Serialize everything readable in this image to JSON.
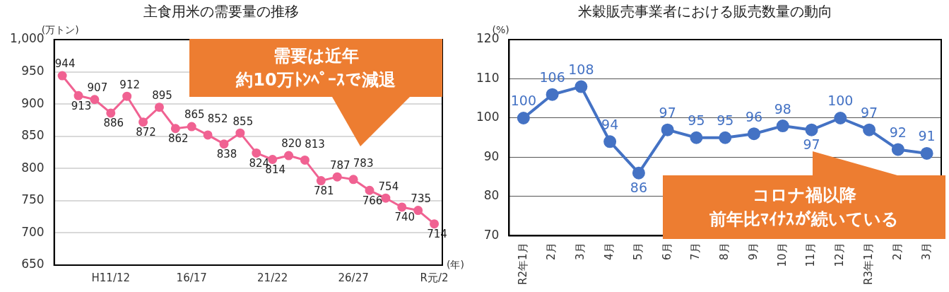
{
  "chart_data": [
    {
      "type": "line",
      "title": "主食用米の需要量の推移",
      "ylabel": "(万トン)",
      "xlabel": "(年)",
      "categories": [
        null,
        null,
        null,
        "H11/12",
        null,
        null,
        null,
        null,
        "16/17",
        null,
        null,
        null,
        null,
        "21/22",
        null,
        null,
        null,
        null,
        "26/27",
        null,
        null,
        null,
        null,
        "R元/2"
      ],
      "series": [
        {
          "color": "#f06292",
          "values": [
            944,
            913,
            907,
            886,
            912,
            872,
            895,
            862,
            865,
            852,
            838,
            855,
            824,
            814,
            820,
            813,
            781,
            787,
            783,
            766,
            754,
            740,
            735,
            714
          ]
        }
      ],
      "ylim": [
        650,
        1000
      ],
      "yticks": [
        650,
        700,
        750,
        800,
        850,
        900,
        950,
        {
          "value": 1000,
          "label": "1,000"
        }
      ],
      "grid": "y",
      "marker": "circle",
      "data_labels": true,
      "annotations": [
        "需要は近年",
        "約10万ﾄﾝﾍﾟｰｽで減退"
      ]
    },
    {
      "type": "line",
      "title": "米穀販売事業者における販売数量の動向",
      "ylabel": "(%)",
      "categories": [
        "R2年1月",
        "2月",
        "3月",
        "4月",
        "5月",
        "6月",
        "7月",
        "8月",
        "9月",
        "10月",
        "11月",
        "12月",
        "R3年1月",
        "2月",
        "3月"
      ],
      "series": [
        {
          "color": "#4472c4",
          "values": [
            100,
            106,
            108,
            94,
            86,
            97,
            95,
            95,
            96,
            98,
            97,
            100,
            97,
            92,
            91
          ]
        }
      ],
      "ylim": [
        70,
        120
      ],
      "yticks": [
        70,
        80,
        90,
        100,
        110,
        120
      ],
      "grid": "y",
      "marker": "circle",
      "data_labels": true,
      "annotations": [
        "コロナ禍以降",
        "前年比ﾏｲﾅｽが続いている"
      ]
    }
  ]
}
